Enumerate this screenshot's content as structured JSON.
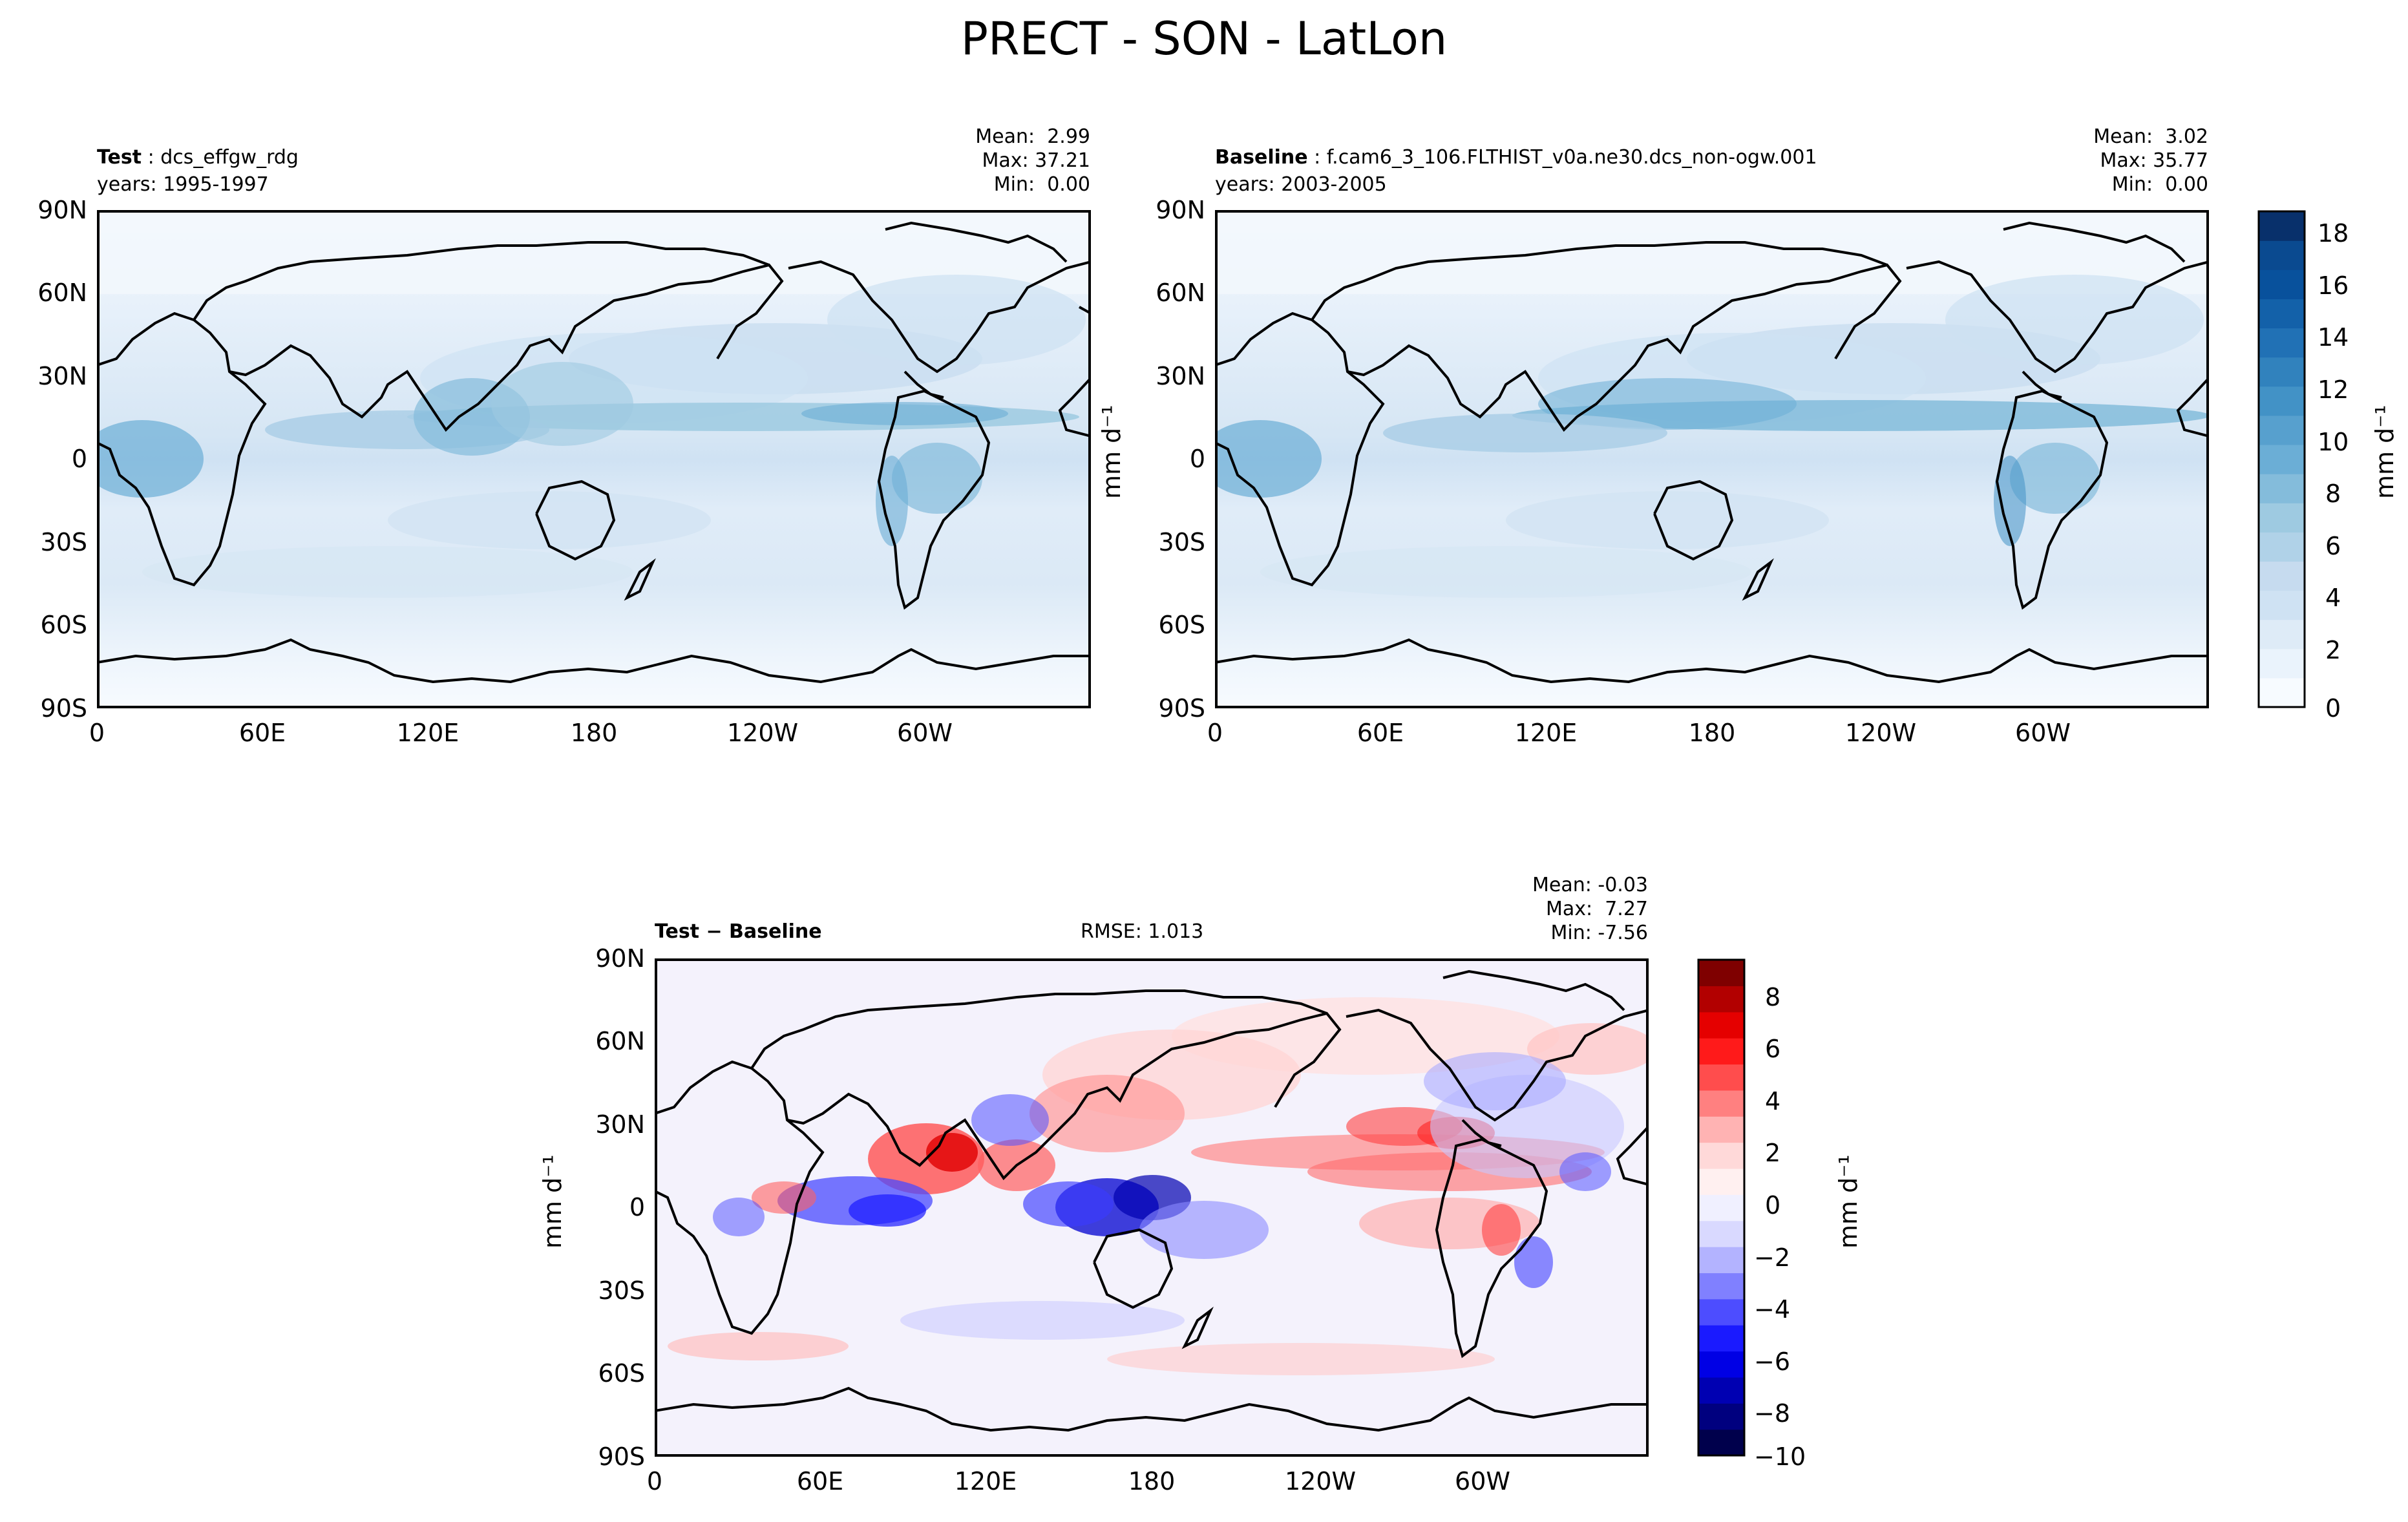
{
  "suptitle": "PRECT - SON - LatLon",
  "panels": {
    "test": {
      "label_bold": "Test",
      "label_rest": " : dcs_effgw_rdg",
      "years": "years: 1995-1997",
      "stats": [
        "Mean:  2.99",
        "Max: 37.21",
        "Min:  0.00"
      ]
    },
    "baseline": {
      "label_bold": "Baseline",
      "label_rest": " : f.cam6_3_106.FLTHIST_v0a.ne30.dcs_non-ogw.001",
      "years": "years: 2003-2005",
      "stats": [
        "Mean:  3.02",
        "Max: 35.77",
        "Min:  0.00"
      ]
    },
    "diff": {
      "label_bold": "Test − Baseline",
      "rmse": "RMSE: 1.013",
      "stats": [
        "Mean: -0.03",
        "Max:  7.27",
        "Min: -7.56"
      ]
    }
  },
  "axes": {
    "lat_ticks": [
      "90N",
      "60N",
      "30N",
      "0",
      "30S",
      "60S",
      "90S"
    ],
    "lon_ticks": [
      "0",
      "60E",
      "120E",
      "180",
      "120W",
      "60W"
    ],
    "units_label": "mm d⁻¹"
  },
  "colorbars": {
    "top": {
      "ticks": [
        "18",
        "16",
        "14",
        "12",
        "10",
        "8",
        "6",
        "4",
        "2",
        "0"
      ],
      "label": "mm d⁻¹",
      "colors": [
        "#f7fbff",
        "#eaf3fc",
        "#deebf7",
        "#cfe2f3",
        "#c6dbef",
        "#b0d2e8",
        "#9ecae1",
        "#84bcdb",
        "#6baed6",
        "#57a0ce",
        "#4292c6",
        "#3182bd",
        "#2171b5",
        "#1361a9",
        "#08519c",
        "#0a4a90",
        "#08306b"
      ]
    },
    "bottom": {
      "ticks": [
        "8",
        "6",
        "4",
        "2",
        "0",
        "−2",
        "−4",
        "−6",
        "−8",
        "−10"
      ],
      "label": "mm d⁻¹",
      "colors": [
        "#00004c",
        "#00007f",
        "#0000b2",
        "#0000e5",
        "#1a1aff",
        "#4d4dff",
        "#8080ff",
        "#b3b3ff",
        "#d9d9ff",
        "#f0f0ff",
        "#fff0f0",
        "#ffd9d9",
        "#ffb3b3",
        "#ff8080",
        "#ff4d4d",
        "#ff1a1a",
        "#e50000",
        "#b20000",
        "#7f0000"
      ]
    }
  },
  "chart_data": [
    {
      "type": "heatmap",
      "title": "Test : dcs_effgw_rdg",
      "variable": "PRECT",
      "season": "SON",
      "units": "mm d⁻¹",
      "xlim": [
        0,
        360
      ],
      "ylim": [
        -90,
        90
      ],
      "colorbar_range": [
        0,
        18
      ],
      "mean": 2.99,
      "max": 37.21,
      "min": 0.0
    },
    {
      "type": "heatmap",
      "title": "Baseline : f.cam6_3_106.FLTHIST_v0a.ne30.dcs_non-ogw.001",
      "variable": "PRECT",
      "season": "SON",
      "units": "mm d⁻¹",
      "xlim": [
        0,
        360
      ],
      "ylim": [
        -90,
        90
      ],
      "colorbar_range": [
        0,
        18
      ],
      "mean": 3.02,
      "max": 35.77,
      "min": 0.0
    },
    {
      "type": "heatmap",
      "title": "Test − Baseline",
      "variable": "PRECT",
      "season": "SON",
      "units": "mm d⁻¹",
      "xlim": [
        0,
        360
      ],
      "ylim": [
        -90,
        90
      ],
      "colorbar_range": [
        -10,
        8
      ],
      "rmse": 1.013,
      "mean": -0.03,
      "max": 7.27,
      "min": -7.56
    }
  ]
}
